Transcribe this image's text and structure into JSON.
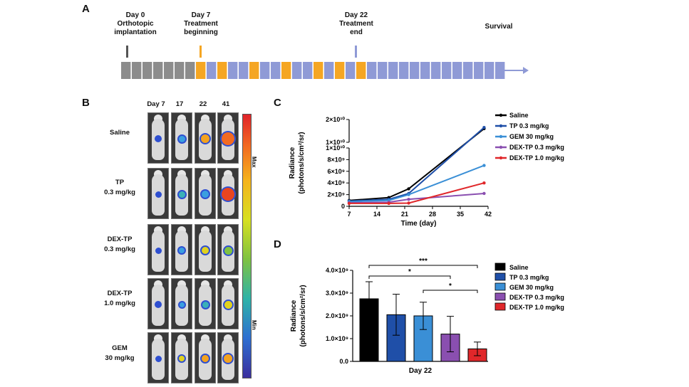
{
  "panelA": {
    "letter": "A",
    "day0": {
      "title": "Day 0",
      "sub1": "Orthotopic",
      "sub2": "implantation"
    },
    "day7": {
      "title": "Day 7",
      "sub1": "Treatment",
      "sub2": "beginning"
    },
    "day22": {
      "title": "Day 22",
      "sub1": "Treatment",
      "sub2": "end"
    },
    "survival": "Survival",
    "colors": {
      "gray": "#8c8c8c",
      "orange": "#f5a623",
      "blue": "#8f9ad6"
    }
  },
  "panelB": {
    "letter": "B",
    "days": [
      "Day 7",
      "17",
      "22",
      "41"
    ],
    "rows": [
      {
        "line1": "Saline",
        "line2": ""
      },
      {
        "line1": "TP",
        "line2": "0.3 mg/kg"
      },
      {
        "line1": "DEX-TP",
        "line2": "0.3 mg/kg"
      },
      {
        "line1": "DEX-TP",
        "line2": "1.0 mg/kg"
      },
      {
        "line1": "GEM",
        "line2": "30 mg/kg"
      }
    ],
    "scale_max": "Max",
    "scale_min": "Min"
  },
  "panelC": {
    "letter": "C",
    "chart_data": {
      "type": "line",
      "title": "",
      "xlabel": "Time (day)",
      "ylabel_line1": "Radiance",
      "ylabel_line2": "(photons/s/cm²/sr)",
      "x_ticks": [
        "7",
        "14",
        "21",
        "28",
        "35",
        "42"
      ],
      "y_ticks_lower": [
        "0",
        "2×10⁹",
        "4×10⁹",
        "6×10⁹",
        "8×10⁹",
        "1×10¹⁰"
      ],
      "y_ticks_upper": [
        "1×10¹⁰",
        "2×10¹⁰"
      ],
      "x": [
        7,
        17,
        22,
        41
      ],
      "series": [
        {
          "name": "Saline",
          "color": "#000000",
          "values": [
            1000000000.0,
            1500000000.0,
            3000000000.0,
            16000000000.0
          ]
        },
        {
          "name": "TP 0.3 mg/kg",
          "color": "#1f4fa8",
          "values": [
            900000000.0,
            1200000000.0,
            2200000000.0,
            16500000000.0
          ]
        },
        {
          "name": "GEM 30 mg/kg",
          "color": "#3a8fd6",
          "values": [
            800000000.0,
            1000000000.0,
            2000000000.0,
            7000000000.0
          ]
        },
        {
          "name": "DEX-TP 0.3 mg/kg",
          "color": "#8a4fb0",
          "values": [
            600000000.0,
            700000000.0,
            1200000000.0,
            2200000000.0
          ]
        },
        {
          "name": "DEX-TP 1.0 mg/kg",
          "color": "#e0272a",
          "values": [
            500000000.0,
            500000000.0,
            550000000.0,
            4000000000.0
          ]
        }
      ]
    }
  },
  "panelD": {
    "letter": "D",
    "chart_data": {
      "type": "bar",
      "title": "",
      "categories": [
        "Saline",
        "TP 0.3 mg/kg",
        "GEM 30 mg/kg",
        "DEX-TP 0.3 mg/kg",
        "DEX-TP 1.0 mg/kg"
      ],
      "values": [
        2750000000.0,
        2050000000.0,
        2000000000.0,
        1200000000.0,
        550000000.0
      ],
      "errors": [
        750000000.0,
        900000000.0,
        600000000.0,
        780000000.0,
        300000000.0
      ],
      "colors": [
        "#000000",
        "#1f4fa8",
        "#3a8fd6",
        "#8a4fb0",
        "#e0272a"
      ],
      "xlabel": "Day 22",
      "ylabel_line1": "Radiance",
      "ylabel_line2": "(photons/s/cm²/sr)",
      "y_ticks": [
        "0.0",
        "1.0×10⁹",
        "2.0×10⁹",
        "3.0×10⁹",
        "4.0×10⁹"
      ],
      "ylim": [
        0,
        4000000000.0
      ],
      "significance": [
        "***",
        "*",
        "*"
      ]
    }
  }
}
